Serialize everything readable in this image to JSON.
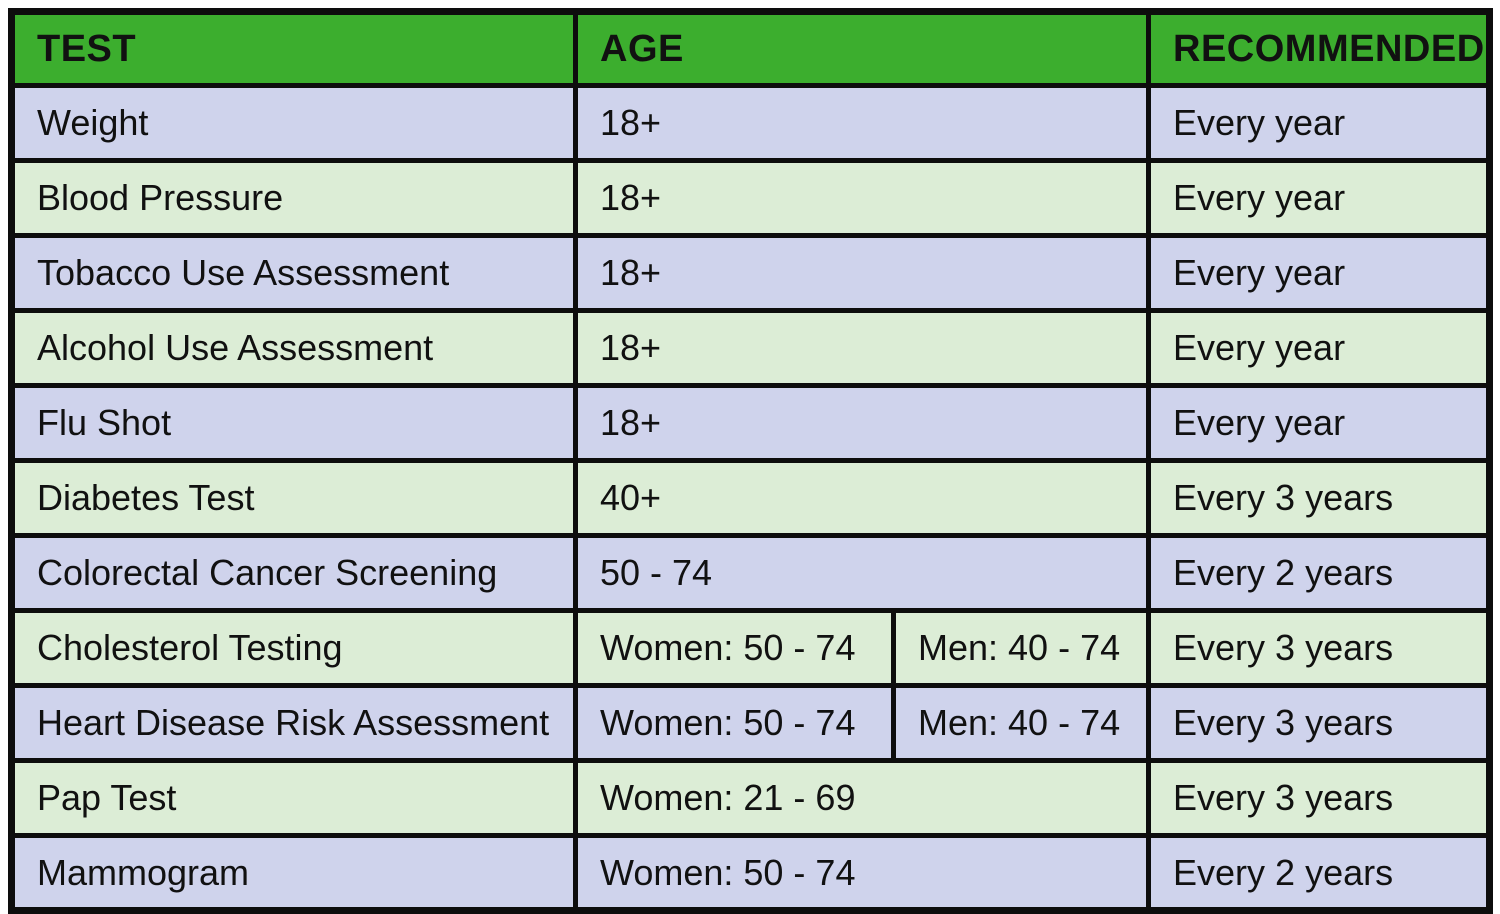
{
  "table": {
    "title_semantic": "health-screening-recommendations",
    "columns": {
      "test": "TEST",
      "age": "AGE",
      "recommended": "RECOMMENDED"
    },
    "rows": [
      {
        "test": "Weight",
        "age": "18+",
        "recommended": "Every year"
      },
      {
        "test": "Blood Pressure",
        "age": "18+",
        "recommended": "Every year"
      },
      {
        "test": "Tobacco Use Assessment",
        "age": "18+",
        "recommended": "Every year"
      },
      {
        "test": "Alcohol Use Assessment",
        "age": "18+",
        "recommended": "Every year"
      },
      {
        "test": "Flu Shot",
        "age": "18+",
        "recommended": "Every year"
      },
      {
        "test": "Diabetes Test",
        "age": "40+",
        "recommended": "Every 3 years"
      },
      {
        "test": "Colorectal Cancer Screening",
        "age": "50 - 74",
        "recommended": "Every 2 years"
      },
      {
        "test": "Cholesterol Testing",
        "age_women": "Women: 50 - 74",
        "age_men": "Men: 40 - 74",
        "recommended": "Every 3 years"
      },
      {
        "test": "Heart Disease Risk Assessment",
        "age_women": "Women: 50 - 74",
        "age_men": "Men: 40 - 74",
        "recommended": "Every 3 years"
      },
      {
        "test": "Pap Test",
        "age": "Women: 21 - 69",
        "recommended": "Every 3 years"
      },
      {
        "test": "Mammogram",
        "age": "Women: 50 - 74",
        "recommended": "Every 2 years"
      }
    ],
    "colors": {
      "header_bg": "#3cae2e",
      "row_lavender": "#cfd3ec",
      "row_green": "#dcedd6",
      "border": "#0d0d0d",
      "text": "#111111"
    }
  }
}
